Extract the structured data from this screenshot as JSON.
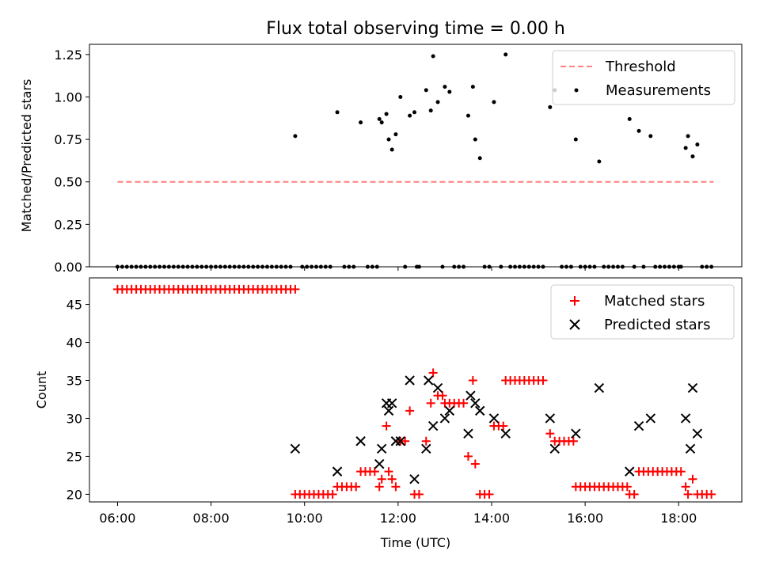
{
  "chart_data": [
    {
      "type": "scatter",
      "title": "Flux total observing time = 0.00 h",
      "xlabel": "",
      "ylabel": "Matched/Predicted stars",
      "ylim": [
        0.0,
        1.31
      ],
      "yticks": [
        "0.00",
        "0.25",
        "0.50",
        "0.75",
        "1.00",
        "1.25"
      ],
      "legend_position": "top-right",
      "threshold": {
        "name": "Threshold",
        "y": 0.5,
        "x_range": [
          6.0,
          18.75
        ],
        "color": "#ff7f7f"
      },
      "measurements": {
        "name": "Measurements",
        "color": "#000000",
        "points": [
          [
            9.8,
            0.77
          ],
          [
            10.7,
            0.91
          ],
          [
            11.2,
            0.85
          ],
          [
            11.6,
            0.87
          ],
          [
            11.65,
            0.85
          ],
          [
            11.75,
            0.9
          ],
          [
            11.8,
            0.75
          ],
          [
            11.87,
            0.69
          ],
          [
            11.95,
            0.78
          ],
          [
            12.05,
            1.0
          ],
          [
            12.25,
            0.89
          ],
          [
            12.35,
            0.91
          ],
          [
            12.6,
            1.04
          ],
          [
            12.7,
            0.92
          ],
          [
            12.75,
            1.24
          ],
          [
            12.85,
            0.97
          ],
          [
            13.0,
            1.06
          ],
          [
            13.1,
            1.03
          ],
          [
            13.5,
            0.89
          ],
          [
            13.6,
            1.06
          ],
          [
            13.65,
            0.75
          ],
          [
            13.75,
            0.64
          ],
          [
            14.05,
            0.97
          ],
          [
            14.3,
            1.25
          ],
          [
            15.25,
            0.94
          ],
          [
            15.35,
            1.04
          ],
          [
            15.8,
            0.75
          ],
          [
            16.3,
            0.62
          ],
          [
            16.95,
            0.87
          ],
          [
            17.15,
            0.8
          ],
          [
            17.4,
            0.77
          ],
          [
            18.15,
            0.7
          ],
          [
            18.2,
            0.77
          ],
          [
            18.3,
            0.65
          ],
          [
            18.4,
            0.72
          ]
        ],
        "zero_x": [
          6.0,
          6.1,
          6.2,
          6.3,
          6.4,
          6.5,
          6.6,
          6.7,
          6.8,
          6.9,
          7.0,
          7.1,
          7.2,
          7.3,
          7.4,
          7.5,
          7.6,
          7.7,
          7.8,
          7.9,
          8.0,
          8.1,
          8.2,
          8.3,
          8.4,
          8.5,
          8.6,
          8.7,
          8.8,
          8.9,
          9.0,
          9.1,
          9.2,
          9.3,
          9.4,
          9.5,
          9.6,
          9.7,
          9.95,
          10.05,
          10.15,
          10.25,
          10.35,
          10.45,
          10.55,
          10.85,
          10.95,
          11.05,
          11.35,
          11.45,
          11.55,
          12.15,
          12.4,
          12.45,
          12.95,
          13.2,
          13.3,
          13.4,
          13.85,
          13.95,
          14.2,
          14.4,
          14.5,
          14.6,
          14.7,
          14.8,
          14.9,
          15.0,
          15.1,
          15.5,
          15.6,
          15.7,
          15.9,
          16.0,
          16.1,
          16.2,
          16.4,
          16.5,
          16.6,
          16.7,
          16.8,
          17.05,
          17.25,
          17.5,
          17.6,
          17.7,
          17.8,
          17.9,
          18.0,
          18.05,
          18.5,
          18.6,
          18.7
        ]
      }
    },
    {
      "type": "scatter",
      "title": "",
      "xlabel": "Time (UTC)",
      "ylabel": "Count",
      "ylim": [
        19.0,
        48.5
      ],
      "yticks": [
        "20",
        "25",
        "30",
        "35",
        "40",
        "45"
      ],
      "xticks": [
        "06:00",
        "08:00",
        "10:00",
        "12:00",
        "14:00",
        "16:00",
        "18:00"
      ],
      "xtick_hours": [
        6,
        8,
        10,
        12,
        14,
        16,
        18
      ],
      "xlim": [
        5.4,
        19.35
      ],
      "legend_position": "top-right",
      "series": [
        {
          "name": "Matched stars",
          "marker": "plus",
          "color": "#ff0000",
          "points": [
            [
              6.0,
              47
            ],
            [
              6.1,
              47
            ],
            [
              6.2,
              47
            ],
            [
              6.3,
              47
            ],
            [
              6.4,
              47
            ],
            [
              6.5,
              47
            ],
            [
              6.6,
              47
            ],
            [
              6.7,
              47
            ],
            [
              6.8,
              47
            ],
            [
              6.9,
              47
            ],
            [
              7.0,
              47
            ],
            [
              7.1,
              47
            ],
            [
              7.2,
              47
            ],
            [
              7.3,
              47
            ],
            [
              7.4,
              47
            ],
            [
              7.5,
              47
            ],
            [
              7.6,
              47
            ],
            [
              7.7,
              47
            ],
            [
              7.8,
              47
            ],
            [
              7.9,
              47
            ],
            [
              8.0,
              47
            ],
            [
              8.1,
              47
            ],
            [
              8.2,
              47
            ],
            [
              8.3,
              47
            ],
            [
              8.4,
              47
            ],
            [
              8.5,
              47
            ],
            [
              8.6,
              47
            ],
            [
              8.7,
              47
            ],
            [
              8.8,
              47
            ],
            [
              8.9,
              47
            ],
            [
              9.0,
              47
            ],
            [
              9.1,
              47
            ],
            [
              9.2,
              47
            ],
            [
              9.3,
              47
            ],
            [
              9.4,
              47
            ],
            [
              9.5,
              47
            ],
            [
              9.6,
              47
            ],
            [
              9.7,
              47
            ],
            [
              9.8,
              47
            ],
            [
              9.8,
              20
            ],
            [
              9.9,
              20
            ],
            [
              10.0,
              20
            ],
            [
              10.1,
              20
            ],
            [
              10.2,
              20
            ],
            [
              10.3,
              20
            ],
            [
              10.4,
              20
            ],
            [
              10.5,
              20
            ],
            [
              10.6,
              20
            ],
            [
              10.7,
              21
            ],
            [
              10.8,
              21
            ],
            [
              10.9,
              21
            ],
            [
              11.0,
              21
            ],
            [
              11.1,
              21
            ],
            [
              11.2,
              23
            ],
            [
              11.3,
              23
            ],
            [
              11.4,
              23
            ],
            [
              11.5,
              23
            ],
            [
              11.6,
              21
            ],
            [
              11.65,
              22
            ],
            [
              11.75,
              29
            ],
            [
              11.8,
              23
            ],
            [
              11.87,
              22
            ],
            [
              11.95,
              21
            ],
            [
              12.05,
              27
            ],
            [
              12.15,
              27
            ],
            [
              12.25,
              31
            ],
            [
              12.35,
              20
            ],
            [
              12.45,
              20
            ],
            [
              12.6,
              27
            ],
            [
              12.7,
              32
            ],
            [
              12.75,
              36
            ],
            [
              12.85,
              33
            ],
            [
              12.95,
              33
            ],
            [
              13.0,
              32
            ],
            [
              13.1,
              32
            ],
            [
              13.2,
              32
            ],
            [
              13.3,
              32
            ],
            [
              13.4,
              32
            ],
            [
              13.5,
              25
            ],
            [
              13.6,
              35
            ],
            [
              13.65,
              24
            ],
            [
              13.75,
              20
            ],
            [
              13.85,
              20
            ],
            [
              13.95,
              20
            ],
            [
              14.05,
              29
            ],
            [
              14.15,
              29
            ],
            [
              14.25,
              29
            ],
            [
              14.3,
              35
            ],
            [
              14.4,
              35
            ],
            [
              14.5,
              35
            ],
            [
              14.6,
              35
            ],
            [
              14.7,
              35
            ],
            [
              14.8,
              35
            ],
            [
              14.9,
              35
            ],
            [
              15.0,
              35
            ],
            [
              15.1,
              35
            ],
            [
              15.25,
              28
            ],
            [
              15.35,
              27
            ],
            [
              15.45,
              27
            ],
            [
              15.55,
              27
            ],
            [
              15.65,
              27
            ],
            [
              15.75,
              27
            ],
            [
              15.8,
              21
            ],
            [
              15.9,
              21
            ],
            [
              16.0,
              21
            ],
            [
              16.1,
              21
            ],
            [
              16.2,
              21
            ],
            [
              16.3,
              21
            ],
            [
              16.4,
              21
            ],
            [
              16.5,
              21
            ],
            [
              16.6,
              21
            ],
            [
              16.7,
              21
            ],
            [
              16.8,
              21
            ],
            [
              16.9,
              21
            ],
            [
              16.95,
              20
            ],
            [
              17.05,
              20
            ],
            [
              17.15,
              23
            ],
            [
              17.25,
              23
            ],
            [
              17.35,
              23
            ],
            [
              17.45,
              23
            ],
            [
              17.55,
              23
            ],
            [
              17.65,
              23
            ],
            [
              17.75,
              23
            ],
            [
              17.85,
              23
            ],
            [
              17.95,
              23
            ],
            [
              18.05,
              23
            ],
            [
              18.15,
              21
            ],
            [
              18.2,
              20
            ],
            [
              18.3,
              22
            ],
            [
              18.4,
              20
            ],
            [
              18.5,
              20
            ],
            [
              18.6,
              20
            ],
            [
              18.7,
              20
            ]
          ]
        },
        {
          "name": "Predicted stars",
          "marker": "x",
          "color": "#000000",
          "points": [
            [
              9.8,
              26
            ],
            [
              10.7,
              23
            ],
            [
              11.2,
              27
            ],
            [
              11.6,
              24
            ],
            [
              11.65,
              26
            ],
            [
              11.75,
              32
            ],
            [
              11.8,
              31
            ],
            [
              11.87,
              32
            ],
            [
              11.95,
              27
            ],
            [
              12.05,
              27
            ],
            [
              12.25,
              35
            ],
            [
              12.35,
              22
            ],
            [
              12.6,
              26
            ],
            [
              12.65,
              35
            ],
            [
              12.75,
              29
            ],
            [
              12.85,
              34
            ],
            [
              13.0,
              30
            ],
            [
              13.1,
              31
            ],
            [
              13.5,
              28
            ],
            [
              13.55,
              33
            ],
            [
              13.65,
              32
            ],
            [
              13.75,
              31
            ],
            [
              14.05,
              30
            ],
            [
              14.3,
              28
            ],
            [
              15.25,
              30
            ],
            [
              15.35,
              26
            ],
            [
              15.8,
              28
            ],
            [
              16.3,
              34
            ],
            [
              16.95,
              23
            ],
            [
              17.15,
              29
            ],
            [
              17.4,
              30
            ],
            [
              18.15,
              30
            ],
            [
              18.25,
              26
            ],
            [
              18.3,
              34
            ],
            [
              18.4,
              28
            ]
          ]
        }
      ]
    }
  ]
}
